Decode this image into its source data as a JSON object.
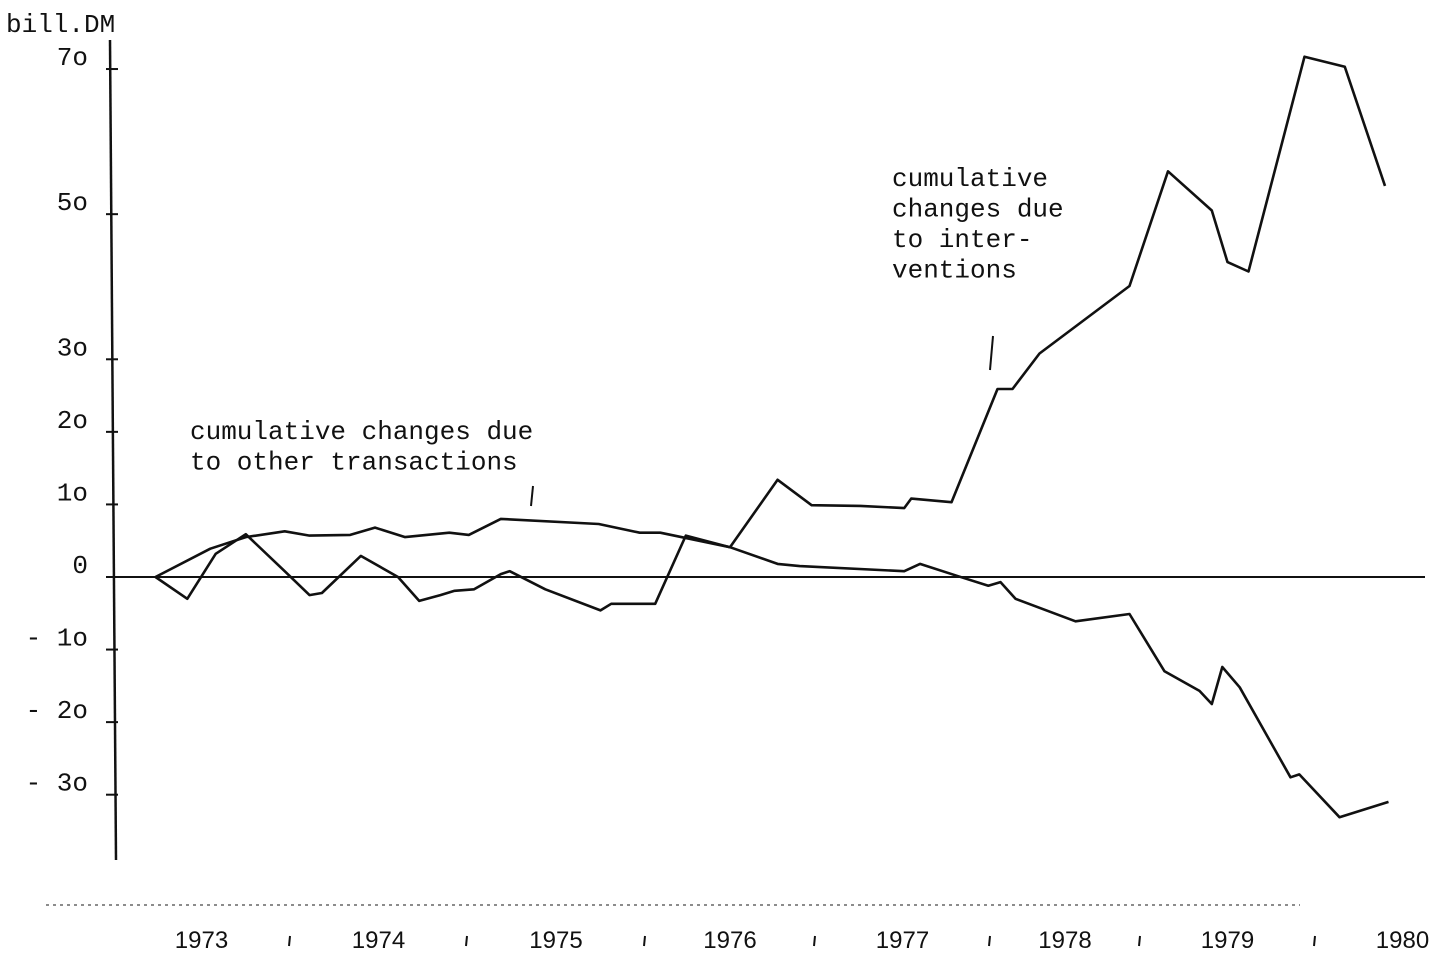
{
  "chart_data": {
    "type": "line",
    "y_unit_label": "bill.DM",
    "ylim": [
      -39,
      74
    ],
    "yticks": [
      {
        "value": 70,
        "label": "7o"
      },
      {
        "value": 50,
        "label": "5o"
      },
      {
        "value": 30,
        "label": "3o"
      },
      {
        "value": 20,
        "label": "2o"
      },
      {
        "value": 10,
        "label": "1o"
      },
      0,
      {
        "value": -10,
        "label": "- 1o"
      },
      {
        "value": -20,
        "label": "- 2o"
      },
      {
        "value": -30,
        "label": "- 3o"
      }
    ],
    "xlim": [
      1973,
      1980.6
    ],
    "xticks": [
      1974,
      1975,
      1976,
      1977,
      1978,
      1979,
      1980
    ],
    "year_labels": [
      "1973",
      "1974",
      "1975",
      "1976",
      "1977",
      "1978",
      "1979",
      "1980"
    ],
    "annotations": [
      {
        "lines": [
          "cumulative",
          "changes due",
          "to inter-",
          "ventions"
        ]
      },
      {
        "lines": [
          "cumulative changes due",
          "to other transactions"
        ]
      }
    ],
    "series": [
      {
        "color": "#111111",
        "x": [
          1973.24,
          1973.42,
          1973.58,
          1973.75,
          1973.97,
          1974.11,
          1974.18,
          1974.4,
          1974.61,
          1974.73,
          1974.85,
          1974.93,
          1975.04,
          1975.19,
          1975.24,
          1975.44,
          1975.75,
          1975.81,
          1976.06,
          1976.24,
          1976.5,
          1976.78,
          1976.98,
          1977.26,
          1977.51,
          1977.55,
          1977.78,
          1978.05,
          1978.15,
          1978.33,
          1978.93,
          1979.16,
          1979.41,
          1979.5,
          1979.62,
          1979.94,
          1980.17,
          1980.4
        ],
        "values": [
          0,
          -3.0,
          3.2,
          5.9,
          0.8,
          -2.5,
          -2.2,
          2.9,
          0,
          -3.3,
          -2.5,
          -1.9,
          -1.7,
          0.4,
          0.8,
          -1.7,
          -4.6,
          -3.7,
          -3.7,
          5.7,
          4.1,
          13.4,
          9.9,
          9.8,
          9.5,
          10.8,
          10.3,
          25.9,
          25.9,
          30.8,
          40.1,
          55.9,
          50.5,
          43.4,
          42.1,
          71.7,
          70.3,
          53.9
        ]
      },
      {
        "color": "#111111",
        "x": [
          1973.24,
          1973.55,
          1973.75,
          1973.97,
          1974.11,
          1974.34,
          1974.48,
          1974.65,
          1974.9,
          1975.01,
          1975.19,
          1975.74,
          1975.97,
          1976.09,
          1976.5,
          1976.78,
          1976.91,
          1977.51,
          1977.6,
          1977.82,
          1977.99,
          1978.07,
          1978.17,
          1978.57,
          1978.93,
          1979.14,
          1979.34,
          1979.41,
          1979.47,
          1979.57,
          1979.86,
          1979.91,
          1980.14,
          1980.42
        ],
        "values": [
          0,
          3.9,
          5.5,
          6.3,
          5.7,
          5.8,
          6.8,
          5.5,
          6.1,
          5.8,
          8.0,
          7.3,
          6.1,
          6.1,
          4.1,
          1.8,
          1.5,
          0.8,
          1.8,
          0.1,
          -1.2,
          -0.7,
          -3.0,
          -6.1,
          -5.1,
          -13.0,
          -15.7,
          -17.5,
          -12.4,
          -15.2,
          -27.6,
          -27.2,
          -33.1,
          -31.0
        ]
      }
    ]
  }
}
